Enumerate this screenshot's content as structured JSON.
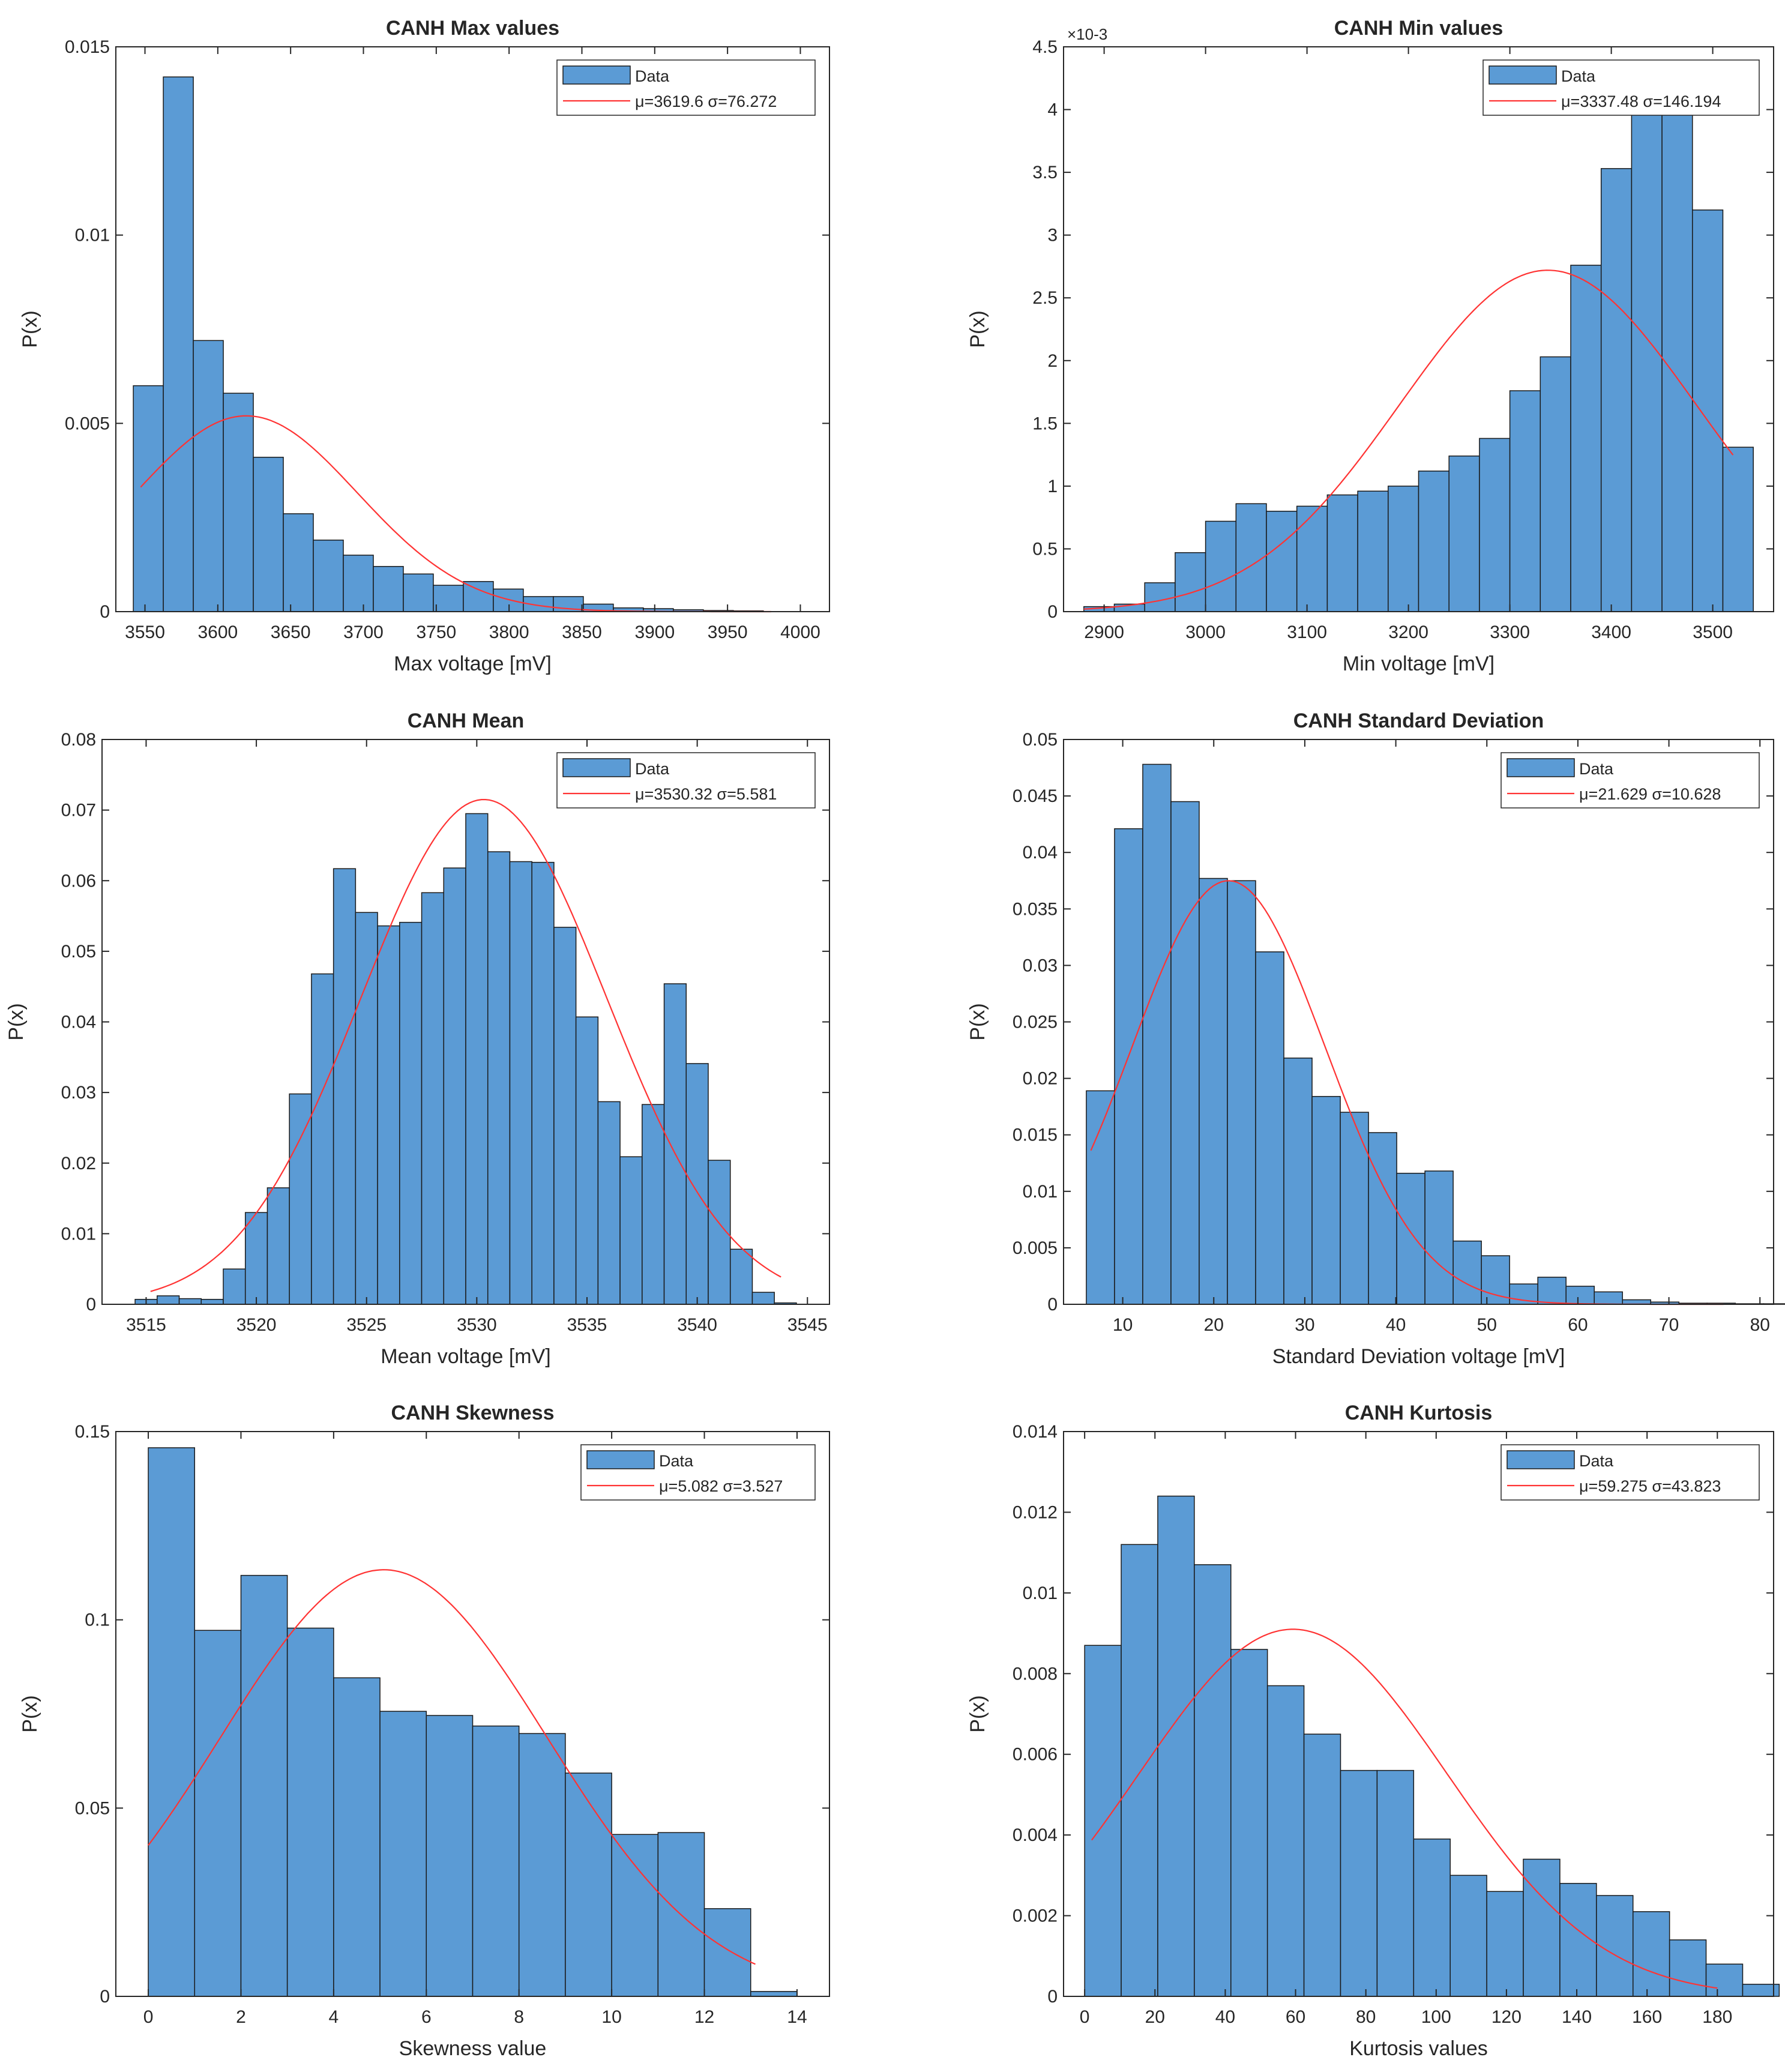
{
  "chart_data": [
    {
      "type": "bar",
      "title": "CANH Max values",
      "xlabel": "Max voltage [mV]",
      "ylabel": "P(x)",
      "xlim": [
        3530,
        4020
      ],
      "ylim": [
        0,
        0.015
      ],
      "xticks": [
        3550,
        3600,
        3650,
        3700,
        3750,
        3800,
        3850,
        3900,
        3950,
        4000
      ],
      "xtick_labels": [
        "3550",
        "3600",
        "3650",
        "3700",
        "3750",
        "3800",
        "3850",
        "3900",
        "3950",
        "4000"
      ],
      "yticks": [
        0,
        0.005,
        0.01,
        0.015
      ],
      "ytick_labels": [
        "0",
        "0.005",
        "0.01",
        "0.015"
      ],
      "y_exponent": "",
      "bin_start": 3542,
      "bin_width": 20.6,
      "values": [
        0.006,
        0.0142,
        0.0072,
        0.0058,
        0.0041,
        0.0026,
        0.0019,
        0.0015,
        0.0012,
        0.001,
        0.0007,
        0.0008,
        0.0006,
        0.0004,
        0.0004,
        0.0002,
        0.0001,
        8e-05,
        5e-05,
        3e-05,
        2e-05
      ],
      "fit": {
        "mu": 3619.6,
        "sigma": 76.272,
        "peak": 0.0052,
        "x_start": 3547,
        "x_end": 3980
      },
      "legend": {
        "data_label": "Data",
        "fit_label": "μ=3619.6 σ=76.272",
        "position": "top-right"
      }
    },
    {
      "type": "bar",
      "title": "CANH Min values",
      "xlabel": "Min voltage [mV]",
      "ylabel": "P(x)",
      "xlim": [
        2860,
        3560
      ],
      "ylim": [
        0,
        0.0045
      ],
      "xticks": [
        2900,
        3000,
        3100,
        3200,
        3300,
        3400,
        3500
      ],
      "xtick_labels": [
        "2900",
        "3000",
        "3100",
        "3200",
        "3300",
        "3400",
        "3500"
      ],
      "yticks": [
        0,
        0.0005,
        0.001,
        0.0015,
        0.002,
        0.0025,
        0.003,
        0.0035,
        0.004,
        0.0045
      ],
      "ytick_labels": [
        "0",
        "0.5",
        "1",
        "1.5",
        "2",
        "2.5",
        "3",
        "3.5",
        "4",
        "4.5"
      ],
      "y_exponent": "×10-3",
      "bin_start": 2880,
      "bin_width": 30,
      "values": [
        4e-05,
        6e-05,
        0.00023,
        0.00047,
        0.00072,
        0.00086,
        0.0008,
        0.00084,
        0.00093,
        0.00096,
        0.001,
        0.00112,
        0.00124,
        0.00138,
        0.00176,
        0.00203,
        0.00276,
        0.00353,
        0.00402,
        0.00397,
        0.0032,
        0.00131
      ],
      "fit": {
        "mu": 3337.48,
        "sigma": 146.194,
        "peak": 0.00272,
        "x_start": 2880,
        "x_end": 3520
      },
      "legend": {
        "data_label": "Data",
        "fit_label": "μ=3337.48 σ=146.194",
        "position": "top-right"
      }
    },
    {
      "type": "bar",
      "title": "CANH Mean",
      "xlabel": "Mean voltage [mV]",
      "ylabel": "P(x)",
      "xlim": [
        3513,
        3546
      ],
      "ylim": [
        0,
        0.08
      ],
      "xticks": [
        3515,
        3520,
        3525,
        3530,
        3535,
        3540,
        3545
      ],
      "xtick_labels": [
        "3515",
        "3520",
        "3525",
        "3530",
        "3535",
        "3540",
        "3545"
      ],
      "yticks": [
        0,
        0.01,
        0.02,
        0.03,
        0.04,
        0.05,
        0.06,
        0.07,
        0.08
      ],
      "ytick_labels": [
        "0",
        "0.01",
        "0.02",
        "0.03",
        "0.04",
        "0.05",
        "0.06",
        "0.07",
        "0.08"
      ],
      "y_exponent": "",
      "bin_start": 3514.5,
      "bin_width": 1,
      "values": [
        0.0007,
        0.0012,
        0.0008,
        0.0007,
        0.005,
        0.013,
        0.0165,
        0.0298,
        0.0468,
        0.0617,
        0.0555,
        0.0536,
        0.0541,
        0.0583,
        0.0618,
        0.0695,
        0.0641,
        0.0627,
        0.0626,
        0.0534,
        0.0407,
        0.0287,
        0.0209,
        0.0283,
        0.0454,
        0.0341,
        0.0204,
        0.0078,
        0.0017,
        0.0002
      ],
      "fit": {
        "mu": 3530.32,
        "sigma": 5.581,
        "peak": 0.0715,
        "x_start": 3515.2,
        "x_end": 3543.8
      },
      "legend": {
        "data_label": "Data",
        "fit_label": "μ=3530.32 σ=5.581",
        "position": "top-right"
      }
    },
    {
      "type": "bar",
      "title": "CANH Standard Deviation",
      "xlabel": "Standard Deviation voltage [mV]",
      "ylabel": "P(x)",
      "xlim": [
        3.5,
        81.5
      ],
      "ylim": [
        0,
        0.05
      ],
      "xticks": [
        10,
        20,
        30,
        40,
        50,
        60,
        70,
        80
      ],
      "xtick_labels": [
        "10",
        "20",
        "30",
        "40",
        "50",
        "60",
        "70",
        "80"
      ],
      "yticks": [
        0,
        0.005,
        0.01,
        0.015,
        0.02,
        0.025,
        0.03,
        0.035,
        0.04,
        0.045,
        0.05
      ],
      "ytick_labels": [
        "0",
        "0.005",
        "0.01",
        "0.015",
        "0.02",
        "0.025",
        "0.03",
        "0.035",
        "0.04",
        "0.045",
        "0.05"
      ],
      "y_exponent": "",
      "bin_start": 6,
      "bin_width": 3.1,
      "values": [
        0.0189,
        0.0421,
        0.0478,
        0.0445,
        0.0377,
        0.0375,
        0.0312,
        0.0218,
        0.0184,
        0.017,
        0.0152,
        0.0116,
        0.0118,
        0.0056,
        0.0043,
        0.0018,
        0.0024,
        0.0016,
        0.0011,
        0.0004,
        0.0002,
        0.0001,
        0.0001,
        5e-05,
        5e-05
      ],
      "fit": {
        "mu": 21.629,
        "sigma": 10.628,
        "peak": 0.0375,
        "x_start": 6.5,
        "x_end": 76
      },
      "legend": {
        "data_label": "Data",
        "fit_label": "μ=21.629 σ=10.628",
        "position": "top-right"
      }
    },
    {
      "type": "bar",
      "title": "CANH Skewness",
      "xlabel": "Skewness value",
      "ylabel": "P(x)",
      "xlim": [
        -0.7,
        14.7
      ],
      "ylim": [
        0,
        0.15
      ],
      "xticks": [
        0,
        2,
        4,
        6,
        8,
        10,
        12,
        14
      ],
      "xtick_labels": [
        "0",
        "2",
        "4",
        "6",
        "8",
        "10",
        "12",
        "14"
      ],
      "yticks": [
        0,
        0.05,
        0.1,
        0.15
      ],
      "ytick_labels": [
        "0",
        "0.05",
        "0.1",
        "0.15"
      ],
      "y_exponent": "",
      "bin_start": 0,
      "bin_width": 1,
      "values": [
        0.1457,
        0.0972,
        0.1118,
        0.0978,
        0.0846,
        0.0757,
        0.0746,
        0.0718,
        0.0698,
        0.0593,
        0.043,
        0.0435,
        0.0233,
        0.0013
      ],
      "fit": {
        "mu": 5.082,
        "sigma": 3.527,
        "peak": 0.1133,
        "x_start": 0,
        "x_end": 13.1
      },
      "legend": {
        "data_label": "Data",
        "fit_label": "μ=5.082 σ=3.527",
        "position": "top-right"
      }
    },
    {
      "type": "bar",
      "title": "CANH Kurtosis",
      "xlabel": "Kurtosis values",
      "ylabel": "P(x)",
      "xlim": [
        -6,
        196
      ],
      "ylim": [
        0,
        0.014
      ],
      "xticks": [
        0,
        20,
        40,
        60,
        80,
        100,
        120,
        140,
        160,
        180
      ],
      "xtick_labels": [
        "0",
        "20",
        "40",
        "60",
        "80",
        "100",
        "120",
        "140",
        "160",
        "180"
      ],
      "yticks": [
        0,
        0.002,
        0.004,
        0.006,
        0.008,
        0.01,
        0.012,
        0.014
      ],
      "ytick_labels": [
        "0",
        "0.002",
        "0.004",
        "0.006",
        "0.008",
        "0.01",
        "0.012",
        "0.014"
      ],
      "y_exponent": "",
      "bin_start": 0,
      "bin_width": 10.4,
      "values": [
        0.0087,
        0.0112,
        0.0124,
        0.0107,
        0.0086,
        0.0077,
        0.0065,
        0.0056,
        0.0056,
        0.0039,
        0.003,
        0.0026,
        0.0034,
        0.0028,
        0.0025,
        0.0021,
        0.0014,
        0.0008,
        0.0003
      ],
      "fit": {
        "mu": 59.275,
        "sigma": 43.823,
        "peak": 0.0091,
        "x_start": 2,
        "x_end": 180
      },
      "legend": {
        "data_label": "Data",
        "fit_label": "μ=59.275 σ=43.823",
        "position": "top-right"
      }
    }
  ]
}
